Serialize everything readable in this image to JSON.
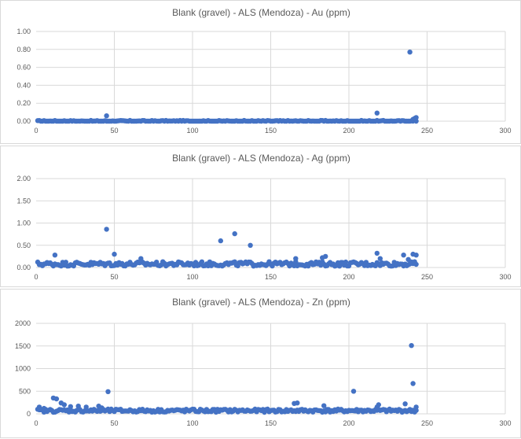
{
  "marker_color": "#4472c4",
  "chart_data": [
    {
      "type": "scatter",
      "title": "Blank (gravel) - ALS (Mendoza) - Au (ppm)",
      "xlabel": "",
      "ylabel": "",
      "xlim": [
        0,
        300
      ],
      "ylim": [
        0,
        1
      ],
      "x_ticks": [
        0,
        50,
        100,
        150,
        200,
        250,
        300
      ],
      "y_ticks": [
        "0.00",
        "0.20",
        "0.40",
        "0.60",
        "0.80",
        "1.00"
      ],
      "grid": true,
      "outliers": [
        [
          45,
          0.06
        ],
        [
          218,
          0.09
        ],
        [
          239,
          0.77
        ],
        [
          241,
          0.02
        ],
        [
          242,
          0.03
        ],
        [
          243,
          0.04
        ]
      ],
      "baseline": {
        "x_from": 1,
        "x_to": 243,
        "y": 0.0,
        "spread": 0.008
      },
      "series": [
        {
          "x": [],
          "y": []
        }
      ]
    },
    {
      "type": "scatter",
      "title": "Blank (gravel) - ALS (Mendoza) - Ag (ppm)",
      "xlabel": "",
      "ylabel": "",
      "xlim": [
        0,
        300
      ],
      "ylim": [
        0,
        2
      ],
      "x_ticks": [
        0,
        50,
        100,
        150,
        200,
        250,
        300
      ],
      "y_ticks": [
        "0.00",
        "0.50",
        "1.00",
        "1.50",
        "2.00"
      ],
      "grid": true,
      "outliers": [
        [
          12,
          0.28
        ],
        [
          45,
          0.86
        ],
        [
          50,
          0.3
        ],
        [
          67,
          0.2
        ],
        [
          118,
          0.6
        ],
        [
          127,
          0.76
        ],
        [
          137,
          0.5
        ],
        [
          166,
          0.2
        ],
        [
          183,
          0.22
        ],
        [
          185,
          0.25
        ],
        [
          218,
          0.32
        ],
        [
          220,
          0.2
        ],
        [
          235,
          0.28
        ],
        [
          238,
          0.18
        ],
        [
          241,
          0.3
        ],
        [
          243,
          0.28
        ]
      ],
      "baseline": {
        "x_from": 1,
        "x_to": 243,
        "y": 0.08,
        "spread": 0.05
      },
      "series": [
        {
          "x": [],
          "y": []
        }
      ]
    },
    {
      "type": "scatter",
      "title": "Blank (gravel) - ALS (Mendoza) - Zn (ppm)",
      "xlabel": "",
      "ylabel": "",
      "xlim": [
        0,
        300
      ],
      "ylim": [
        0,
        2000
      ],
      "x_ticks": [
        0,
        50,
        100,
        150,
        200,
        250,
        300
      ],
      "y_ticks": [
        "0",
        "500",
        "1000",
        "1500",
        "2000"
      ],
      "grid": true,
      "outliers": [
        [
          2,
          150
        ],
        [
          5,
          120
        ],
        [
          11,
          350
        ],
        [
          13,
          330
        ],
        [
          16,
          240
        ],
        [
          18,
          200
        ],
        [
          22,
          160
        ],
        [
          27,
          170
        ],
        [
          32,
          150
        ],
        [
          40,
          170
        ],
        [
          42,
          130
        ],
        [
          46,
          490
        ],
        [
          165,
          230
        ],
        [
          167,
          240
        ],
        [
          184,
          180
        ],
        [
          203,
          500
        ],
        [
          218,
          150
        ],
        [
          219,
          200
        ],
        [
          236,
          220
        ],
        [
          240,
          1510
        ],
        [
          241,
          670
        ],
        [
          243,
          150
        ]
      ],
      "baseline": {
        "x_from": 1,
        "x_to": 243,
        "y": 70,
        "spread": 35
      },
      "series": [
        {
          "x": [],
          "y": []
        }
      ]
    }
  ]
}
